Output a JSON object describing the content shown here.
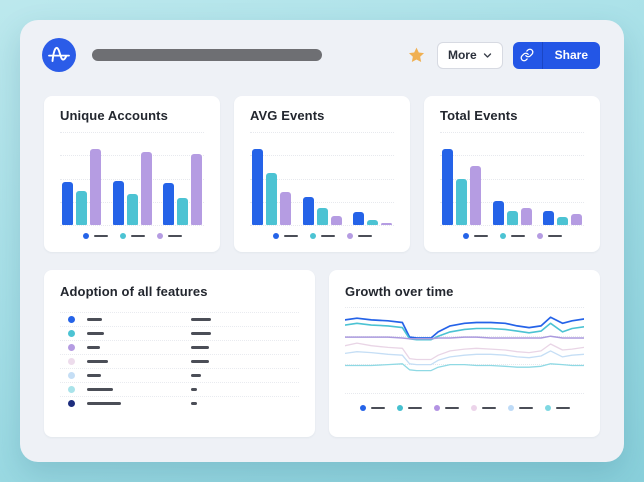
{
  "header": {
    "logo": "amplitude-logo",
    "more_label": "More",
    "share_label": "Share"
  },
  "colors": {
    "background_teal": "#a5dfe7",
    "panel": "#eef1f6",
    "card": "#ffffff",
    "accent_blue": "#2356e6",
    "bar_blue": "#2563e8",
    "bar_teal": "#4cc3d3",
    "bar_purple": "#b59ce2",
    "star_gold": "#f0b052",
    "placeholder_dash": "#4b4e57",
    "title_placeholder_bar": "#6e6f73"
  },
  "chart_data": [
    {
      "id": "unique_accounts",
      "type": "bar",
      "title": "Unique Accounts",
      "categories": [
        "group-1",
        "group-2",
        "group-3"
      ],
      "ylim": [
        0,
        100
      ],
      "grid": true,
      "legend": "dot-with-placeholder-dash",
      "series": [
        {
          "name": "series-blue",
          "color": "#2563e8",
          "values": [
            56,
            58,
            55
          ]
        },
        {
          "name": "series-teal",
          "color": "#4cc3d3",
          "values": [
            45,
            41,
            36
          ]
        },
        {
          "name": "series-purple",
          "color": "#b59ce2",
          "values": [
            100,
            96,
            94
          ]
        }
      ]
    },
    {
      "id": "avg_events",
      "type": "bar",
      "title": "AVG Events",
      "categories": [
        "group-1",
        "group-2",
        "group-3"
      ],
      "ylim": [
        0,
        100
      ],
      "grid": true,
      "legend": "dot-with-placeholder-dash",
      "series": [
        {
          "name": "series-blue",
          "color": "#2563e8",
          "values": [
            100,
            37,
            17
          ]
        },
        {
          "name": "series-teal",
          "color": "#4cc3d3",
          "values": [
            69,
            23,
            7
          ]
        },
        {
          "name": "series-purple",
          "color": "#b59ce2",
          "values": [
            43,
            12,
            3
          ]
        }
      ]
    },
    {
      "id": "total_events",
      "type": "bar",
      "title": "Total Events",
      "categories": [
        "group-1",
        "group-2",
        "group-3"
      ],
      "ylim": [
        0,
        100
      ],
      "grid": true,
      "legend": "dot-with-placeholder-dash",
      "series": [
        {
          "name": "series-blue",
          "color": "#2563e8",
          "values": [
            100,
            32,
            18
          ]
        },
        {
          "name": "series-teal",
          "color": "#4cc3d3",
          "values": [
            60,
            18,
            11
          ]
        },
        {
          "name": "series-purple",
          "color": "#b59ce2",
          "values": [
            78,
            23,
            14
          ]
        }
      ]
    },
    {
      "id": "adoption",
      "type": "table",
      "title": "Adoption of all features",
      "note": "rows are placeholder dashes (no readable text); widths in px",
      "rows": [
        {
          "color": "#2563e8",
          "label_w": 15,
          "value_w": 20
        },
        {
          "color": "#4cc3d3",
          "label_w": 17,
          "value_w": 20
        },
        {
          "color": "#b59ce2",
          "label_w": 13,
          "value_w": 18
        },
        {
          "color": "#eddcec",
          "label_w": 21,
          "value_w": 18
        },
        {
          "color": "#c5def5",
          "label_w": 14,
          "value_w": 10
        },
        {
          "color": "#a9e3ea",
          "label_w": 26,
          "value_w": 6
        },
        {
          "color": "#1d2d7d",
          "label_w": 34,
          "value_w": 6
        }
      ]
    },
    {
      "id": "growth",
      "type": "line",
      "title": "Growth over time",
      "x": [
        0,
        5,
        11,
        18,
        24,
        27,
        30,
        36,
        39,
        44,
        50,
        55,
        61,
        67,
        72,
        77,
        82,
        86,
        91,
        95,
        100
      ],
      "ylim": [
        0,
        100
      ],
      "grid": true,
      "legend": "dot-with-placeholder-dash",
      "series": [
        {
          "name": "series-blue",
          "color": "#2563e8",
          "dot": "#2563e8",
          "width": 1.7,
          "values": [
            85,
            87,
            85,
            84,
            82,
            65,
            64,
            64,
            71,
            78,
            81,
            82,
            82,
            81,
            78,
            76,
            78,
            88,
            81,
            84,
            86
          ]
        },
        {
          "name": "series-teal",
          "color": "#4cc3d3",
          "dot": "#45c0cf",
          "width": 1.6,
          "values": [
            79,
            81,
            79,
            78,
            76,
            63,
            62,
            62,
            66,
            71,
            74,
            75,
            75,
            74,
            72,
            70,
            72,
            81,
            71,
            75,
            77
          ]
        },
        {
          "name": "series-purple",
          "color": "#ab9ade",
          "dot": "#b393e3",
          "width": 1.5,
          "values": [
            65,
            65,
            65,
            65,
            64,
            63,
            63,
            63,
            64,
            64,
            65,
            65,
            64,
            64,
            64,
            64,
            64,
            66,
            64,
            64,
            64
          ]
        },
        {
          "name": "series-pink",
          "color": "#e9d5e6",
          "dot": "#ecd4ea",
          "width": 1.3,
          "values": [
            55,
            58,
            55,
            53,
            52,
            40,
            39,
            39,
            44,
            49,
            51,
            52,
            51,
            50,
            48,
            47,
            49,
            57,
            50,
            51,
            53
          ]
        },
        {
          "name": "series-light-blue",
          "color": "#c5def5",
          "dot": "#bedbf7",
          "width": 1.3,
          "values": [
            46,
            48,
            47,
            45,
            44,
            34,
            33,
            33,
            38,
            42,
            44,
            45,
            45,
            44,
            42,
            41,
            43,
            49,
            42,
            44,
            45
          ]
        },
        {
          "name": "series-cyan",
          "color": "#8fd9e4",
          "dot": "#7fd8e2",
          "width": 1.3,
          "values": [
            32,
            32,
            32,
            33,
            34,
            27,
            26,
            26,
            30,
            33,
            33,
            32,
            32,
            31,
            30,
            30,
            31,
            34,
            33,
            32,
            32
          ]
        }
      ]
    }
  ]
}
